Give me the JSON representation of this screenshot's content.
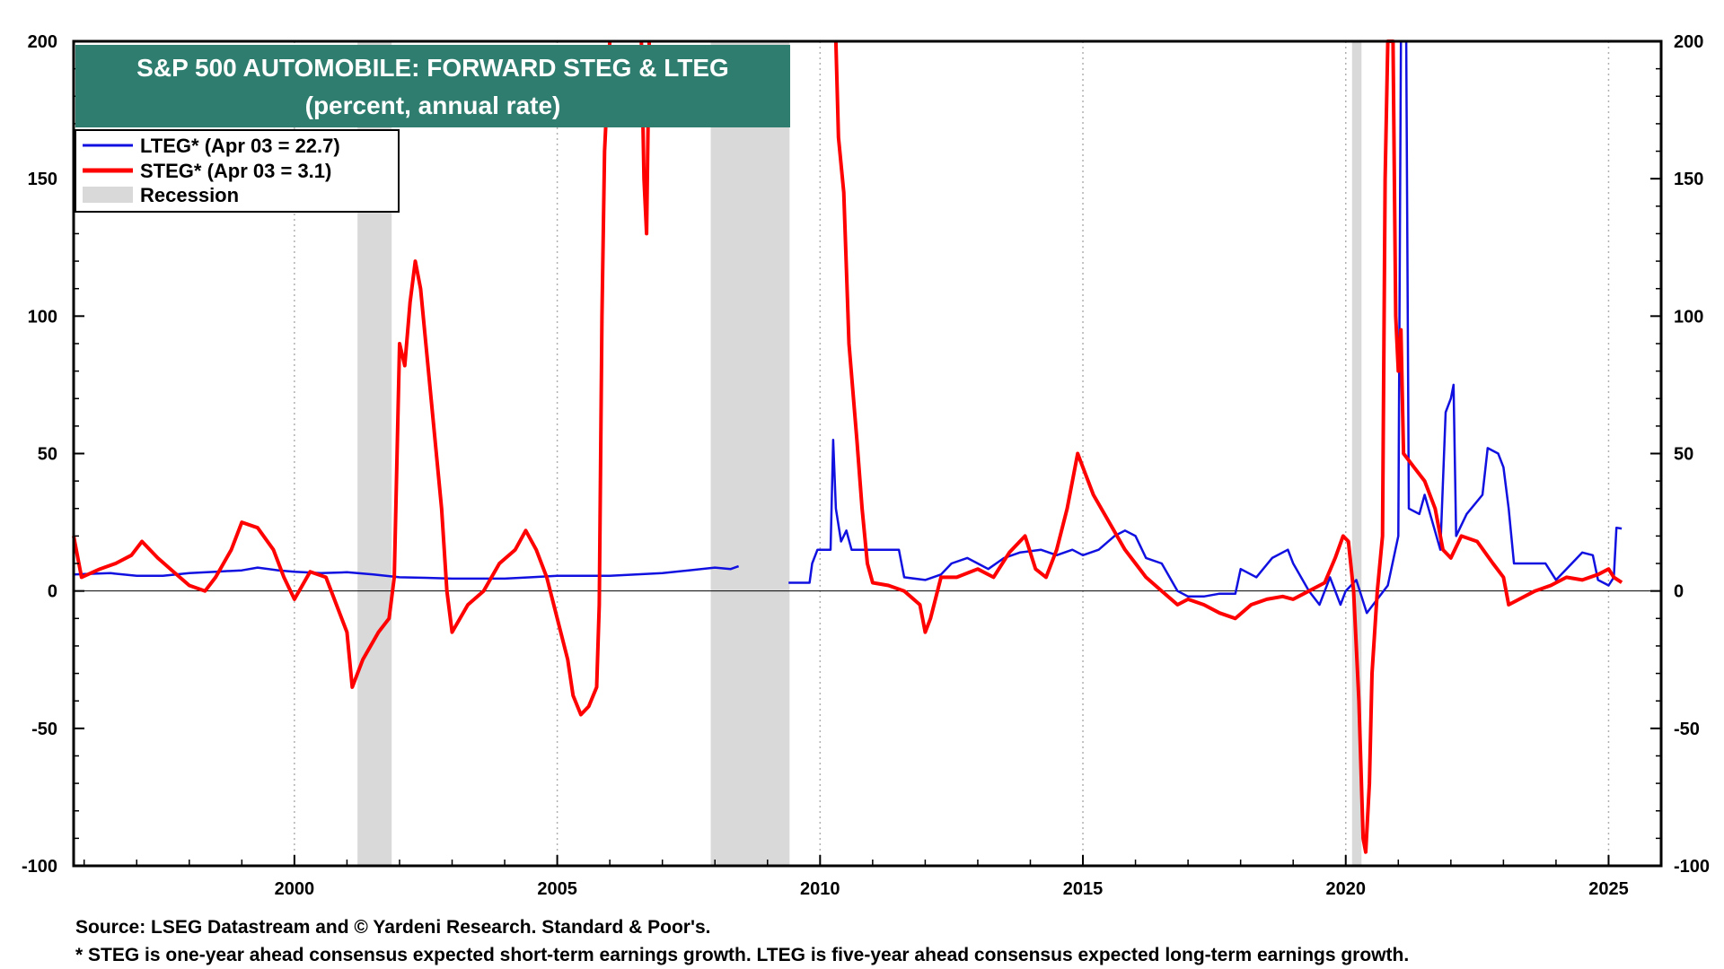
{
  "colors": {
    "lteg": "#1010e0",
    "steg": "#ff0000",
    "recession": "#d9d9d9",
    "title_bg": "#2e7d6f",
    "title_text": "#ffffff",
    "grid": "#b0b0b0",
    "zero_line": "#000000"
  },
  "chart_data": {
    "type": "line",
    "title": "S&P 500 AUTOMOBILE: FORWARD STEG & LTEG",
    "subtitle": "(percent, annual rate)",
    "xlim": [
      1995.8,
      2026.0
    ],
    "ylim": [
      -100,
      200
    ],
    "x_ticks": [
      2000,
      2005,
      2010,
      2015,
      2020,
      2025
    ],
    "x_tick_labels": [
      "2000",
      "2005",
      "2010",
      "2015",
      "2020",
      "2025"
    ],
    "y_ticks": [
      -100,
      -50,
      0,
      50,
      100,
      150,
      200
    ],
    "y_tick_labels": [
      "-100",
      "-50",
      "0",
      "50",
      "100",
      "150",
      "200"
    ],
    "grid": "vertical dotted",
    "legend_position": "top-left",
    "legend": [
      {
        "key": "lteg",
        "label": "LTEG* (Apr 03 = 22.7)"
      },
      {
        "key": "steg",
        "label": "STEG* (Apr 03 = 3.1)"
      },
      {
        "key": "recession",
        "label": "Recession"
      }
    ],
    "recessions": [
      [
        2001.2,
        2001.85
      ],
      [
        2007.92,
        2009.42
      ],
      [
        2020.12,
        2020.3
      ]
    ],
    "series": [
      {
        "name": "LTEG*",
        "key": "lteg",
        "segments": [
          [
            [
              1995.8,
              6
            ],
            [
              1996.5,
              6.5
            ],
            [
              1997.0,
              5.5
            ],
            [
              1997.5,
              5.5
            ],
            [
              1998.0,
              6.5
            ],
            [
              1998.5,
              7
            ],
            [
              1999.0,
              7.5
            ],
            [
              1999.3,
              8.5
            ],
            [
              1999.7,
              7.5
            ],
            [
              2000.0,
              7
            ],
            [
              2000.5,
              6.5
            ],
            [
              2001.0,
              6.8
            ],
            [
              2001.5,
              6
            ],
            [
              2002.0,
              5
            ],
            [
              2002.5,
              4.8
            ],
            [
              2003.0,
              4.5
            ],
            [
              2003.5,
              4.5
            ],
            [
              2004.0,
              4.5
            ],
            [
              2004.5,
              5
            ],
            [
              2005.0,
              5.5
            ],
            [
              2005.5,
              5.5
            ],
            [
              2006.0,
              5.5
            ],
            [
              2006.5,
              6
            ],
            [
              2007.0,
              6.5
            ],
            [
              2007.5,
              7.5
            ],
            [
              2008.0,
              8.5
            ],
            [
              2008.3,
              8
            ],
            [
              2008.45,
              9
            ]
          ],
          [
            [
              2009.4,
              3
            ],
            [
              2009.8,
              3
            ],
            [
              2009.85,
              10
            ],
            [
              2009.95,
              15
            ],
            [
              2010.2,
              15
            ],
            [
              2010.25,
              55
            ],
            [
              2010.3,
              30
            ],
            [
              2010.4,
              18
            ],
            [
              2010.5,
              22
            ],
            [
              2010.6,
              15
            ],
            [
              2011.0,
              15
            ],
            [
              2011.5,
              15
            ],
            [
              2011.6,
              5
            ],
            [
              2012.0,
              4
            ],
            [
              2012.3,
              6
            ],
            [
              2012.5,
              10
            ],
            [
              2012.8,
              12
            ],
            [
              2013.0,
              10
            ],
            [
              2013.2,
              8
            ],
            [
              2013.5,
              12
            ],
            [
              2013.8,
              14
            ],
            [
              2014.2,
              15
            ],
            [
              2014.5,
              13
            ],
            [
              2014.8,
              15
            ],
            [
              2015.0,
              13
            ],
            [
              2015.3,
              15
            ],
            [
              2015.6,
              20
            ],
            [
              2015.8,
              22
            ],
            [
              2016.0,
              20
            ],
            [
              2016.2,
              12
            ],
            [
              2016.5,
              10
            ],
            [
              2016.8,
              0
            ],
            [
              2017.0,
              -2
            ],
            [
              2017.3,
              -2
            ],
            [
              2017.6,
              -1
            ],
            [
              2017.9,
              -1
            ],
            [
              2018.0,
              8
            ],
            [
              2018.3,
              5
            ],
            [
              2018.6,
              12
            ],
            [
              2018.9,
              15
            ],
            [
              2019.0,
              10
            ],
            [
              2019.3,
              0
            ],
            [
              2019.5,
              -5
            ],
            [
              2019.7,
              5
            ],
            [
              2019.9,
              -5
            ],
            [
              2020.0,
              0
            ],
            [
              2020.2,
              4
            ],
            [
              2020.4,
              -8
            ],
            [
              2020.6,
              -3
            ],
            [
              2020.8,
              2
            ],
            [
              2021.0,
              20
            ],
            [
              2021.05,
              200
            ],
            [
              2021.15,
              200
            ],
            [
              2021.2,
              30
            ],
            [
              2021.4,
              28
            ],
            [
              2021.5,
              35
            ],
            [
              2021.8,
              15
            ],
            [
              2021.9,
              65
            ],
            [
              2022.0,
              70
            ],
            [
              2022.05,
              75
            ],
            [
              2022.1,
              20
            ],
            [
              2022.3,
              28
            ],
            [
              2022.6,
              35
            ],
            [
              2022.7,
              52
            ],
            [
              2022.9,
              50
            ],
            [
              2023.0,
              45
            ],
            [
              2023.1,
              30
            ],
            [
              2023.2,
              10
            ],
            [
              2023.5,
              10
            ],
            [
              2023.8,
              10
            ],
            [
              2024.0,
              4
            ],
            [
              2024.3,
              10
            ],
            [
              2024.5,
              14
            ],
            [
              2024.7,
              13
            ],
            [
              2024.8,
              4
            ],
            [
              2025.0,
              2
            ],
            [
              2025.1,
              5
            ],
            [
              2025.15,
              23
            ],
            [
              2025.25,
              22.7
            ]
          ]
        ]
      },
      {
        "name": "STEG*",
        "key": "steg",
        "segments": [
          [
            [
              1995.8,
              20
            ],
            [
              1995.95,
              5
            ],
            [
              1996.3,
              8
            ],
            [
              1996.6,
              10
            ],
            [
              1996.9,
              13
            ],
            [
              1997.1,
              18
            ],
            [
              1997.4,
              12
            ],
            [
              1997.7,
              7
            ],
            [
              1998.0,
              2
            ],
            [
              1998.3,
              0
            ],
            [
              1998.5,
              5
            ],
            [
              1998.8,
              15
            ],
            [
              1999.0,
              25
            ],
            [
              1999.3,
              23
            ],
            [
              1999.6,
              15
            ],
            [
              1999.8,
              5
            ],
            [
              2000.0,
              -3
            ],
            [
              2000.3,
              7
            ],
            [
              2000.6,
              5
            ],
            [
              2000.8,
              -5
            ],
            [
              2001.0,
              -15
            ],
            [
              2001.1,
              -35
            ],
            [
              2001.3,
              -25
            ],
            [
              2001.6,
              -15
            ],
            [
              2001.8,
              -10
            ],
            [
              2001.9,
              5
            ],
            [
              2002.0,
              90
            ],
            [
              2002.1,
              82
            ],
            [
              2002.2,
              105
            ],
            [
              2002.3,
              120
            ],
            [
              2002.4,
              110
            ],
            [
              2002.6,
              70
            ],
            [
              2002.8,
              30
            ],
            [
              2002.9,
              0
            ],
            [
              2003.0,
              -15
            ],
            [
              2003.3,
              -5
            ],
            [
              2003.6,
              0
            ],
            [
              2003.9,
              10
            ],
            [
              2004.2,
              15
            ],
            [
              2004.4,
              22
            ],
            [
              2004.6,
              15
            ],
            [
              2004.8,
              5
            ],
            [
              2005.0,
              -10
            ],
            [
              2005.2,
              -25
            ],
            [
              2005.3,
              -38
            ],
            [
              2005.45,
              -45
            ],
            [
              2005.6,
              -42
            ],
            [
              2005.75,
              -35
            ],
            [
              2005.8,
              -5
            ],
            [
              2005.85,
              100
            ],
            [
              2005.9,
              160
            ],
            [
              2006.0,
              200
            ]
          ],
          [
            [
              2006.6,
              200
            ],
            [
              2006.65,
              150
            ],
            [
              2006.7,
              130
            ],
            [
              2006.75,
              200
            ]
          ],
          [
            [
              2010.3,
              200
            ],
            [
              2010.35,
              165
            ],
            [
              2010.45,
              145
            ],
            [
              2010.55,
              90
            ],
            [
              2010.7,
              55
            ],
            [
              2010.8,
              30
            ],
            [
              2010.9,
              10
            ],
            [
              2011.0,
              3
            ],
            [
              2011.3,
              2
            ],
            [
              2011.6,
              0
            ],
            [
              2011.9,
              -5
            ],
            [
              2012.0,
              -15
            ],
            [
              2012.1,
              -10
            ],
            [
              2012.3,
              5
            ],
            [
              2012.6,
              5
            ],
            [
              2013.0,
              8
            ],
            [
              2013.3,
              5
            ],
            [
              2013.6,
              14
            ],
            [
              2013.9,
              20
            ],
            [
              2014.1,
              8
            ],
            [
              2014.3,
              5
            ],
            [
              2014.5,
              15
            ],
            [
              2014.7,
              30
            ],
            [
              2014.9,
              50
            ],
            [
              2015.0,
              45
            ],
            [
              2015.2,
              35
            ],
            [
              2015.5,
              25
            ],
            [
              2015.8,
              15
            ],
            [
              2016.0,
              10
            ],
            [
              2016.2,
              5
            ],
            [
              2016.5,
              0
            ],
            [
              2016.8,
              -5
            ],
            [
              2017.0,
              -3
            ],
            [
              2017.3,
              -5
            ],
            [
              2017.6,
              -8
            ],
            [
              2017.9,
              -10
            ],
            [
              2018.2,
              -5
            ],
            [
              2018.5,
              -3
            ],
            [
              2018.8,
              -2
            ],
            [
              2019.0,
              -3
            ],
            [
              2019.3,
              0
            ],
            [
              2019.6,
              3
            ],
            [
              2019.8,
              12
            ],
            [
              2019.95,
              20
            ],
            [
              2020.05,
              18
            ],
            [
              2020.15,
              0
            ],
            [
              2020.25,
              -40
            ],
            [
              2020.33,
              -90
            ],
            [
              2020.38,
              -95
            ],
            [
              2020.45,
              -70
            ],
            [
              2020.5,
              -30
            ],
            [
              2020.6,
              0
            ],
            [
              2020.7,
              20
            ],
            [
              2020.75,
              150
            ],
            [
              2020.8,
              200
            ],
            [
              2020.9,
              200
            ],
            [
              2020.95,
              100
            ],
            [
              2021.0,
              80
            ],
            [
              2021.05,
              95
            ],
            [
              2021.1,
              50
            ],
            [
              2021.3,
              45
            ],
            [
              2021.5,
              40
            ],
            [
              2021.7,
              30
            ],
            [
              2021.85,
              15
            ],
            [
              2022.0,
              12
            ],
            [
              2022.2,
              20
            ],
            [
              2022.5,
              18
            ],
            [
              2022.8,
              10
            ],
            [
              2023.0,
              5
            ],
            [
              2023.1,
              -5
            ],
            [
              2023.3,
              -3
            ],
            [
              2023.6,
              0
            ],
            [
              2023.9,
              2
            ],
            [
              2024.2,
              5
            ],
            [
              2024.5,
              4
            ],
            [
              2024.8,
              6
            ],
            [
              2025.0,
              8
            ],
            [
              2025.1,
              5
            ],
            [
              2025.25,
              3.1
            ]
          ]
        ]
      }
    ]
  },
  "notes": {
    "source": "Source: LSEG Datastream and © Yardeni Research. Standard & Poor's.",
    "footnote": "* STEG is one-year ahead consensus expected short-term earnings growth. LTEG is five-year ahead consensus expected long-term earnings growth."
  }
}
